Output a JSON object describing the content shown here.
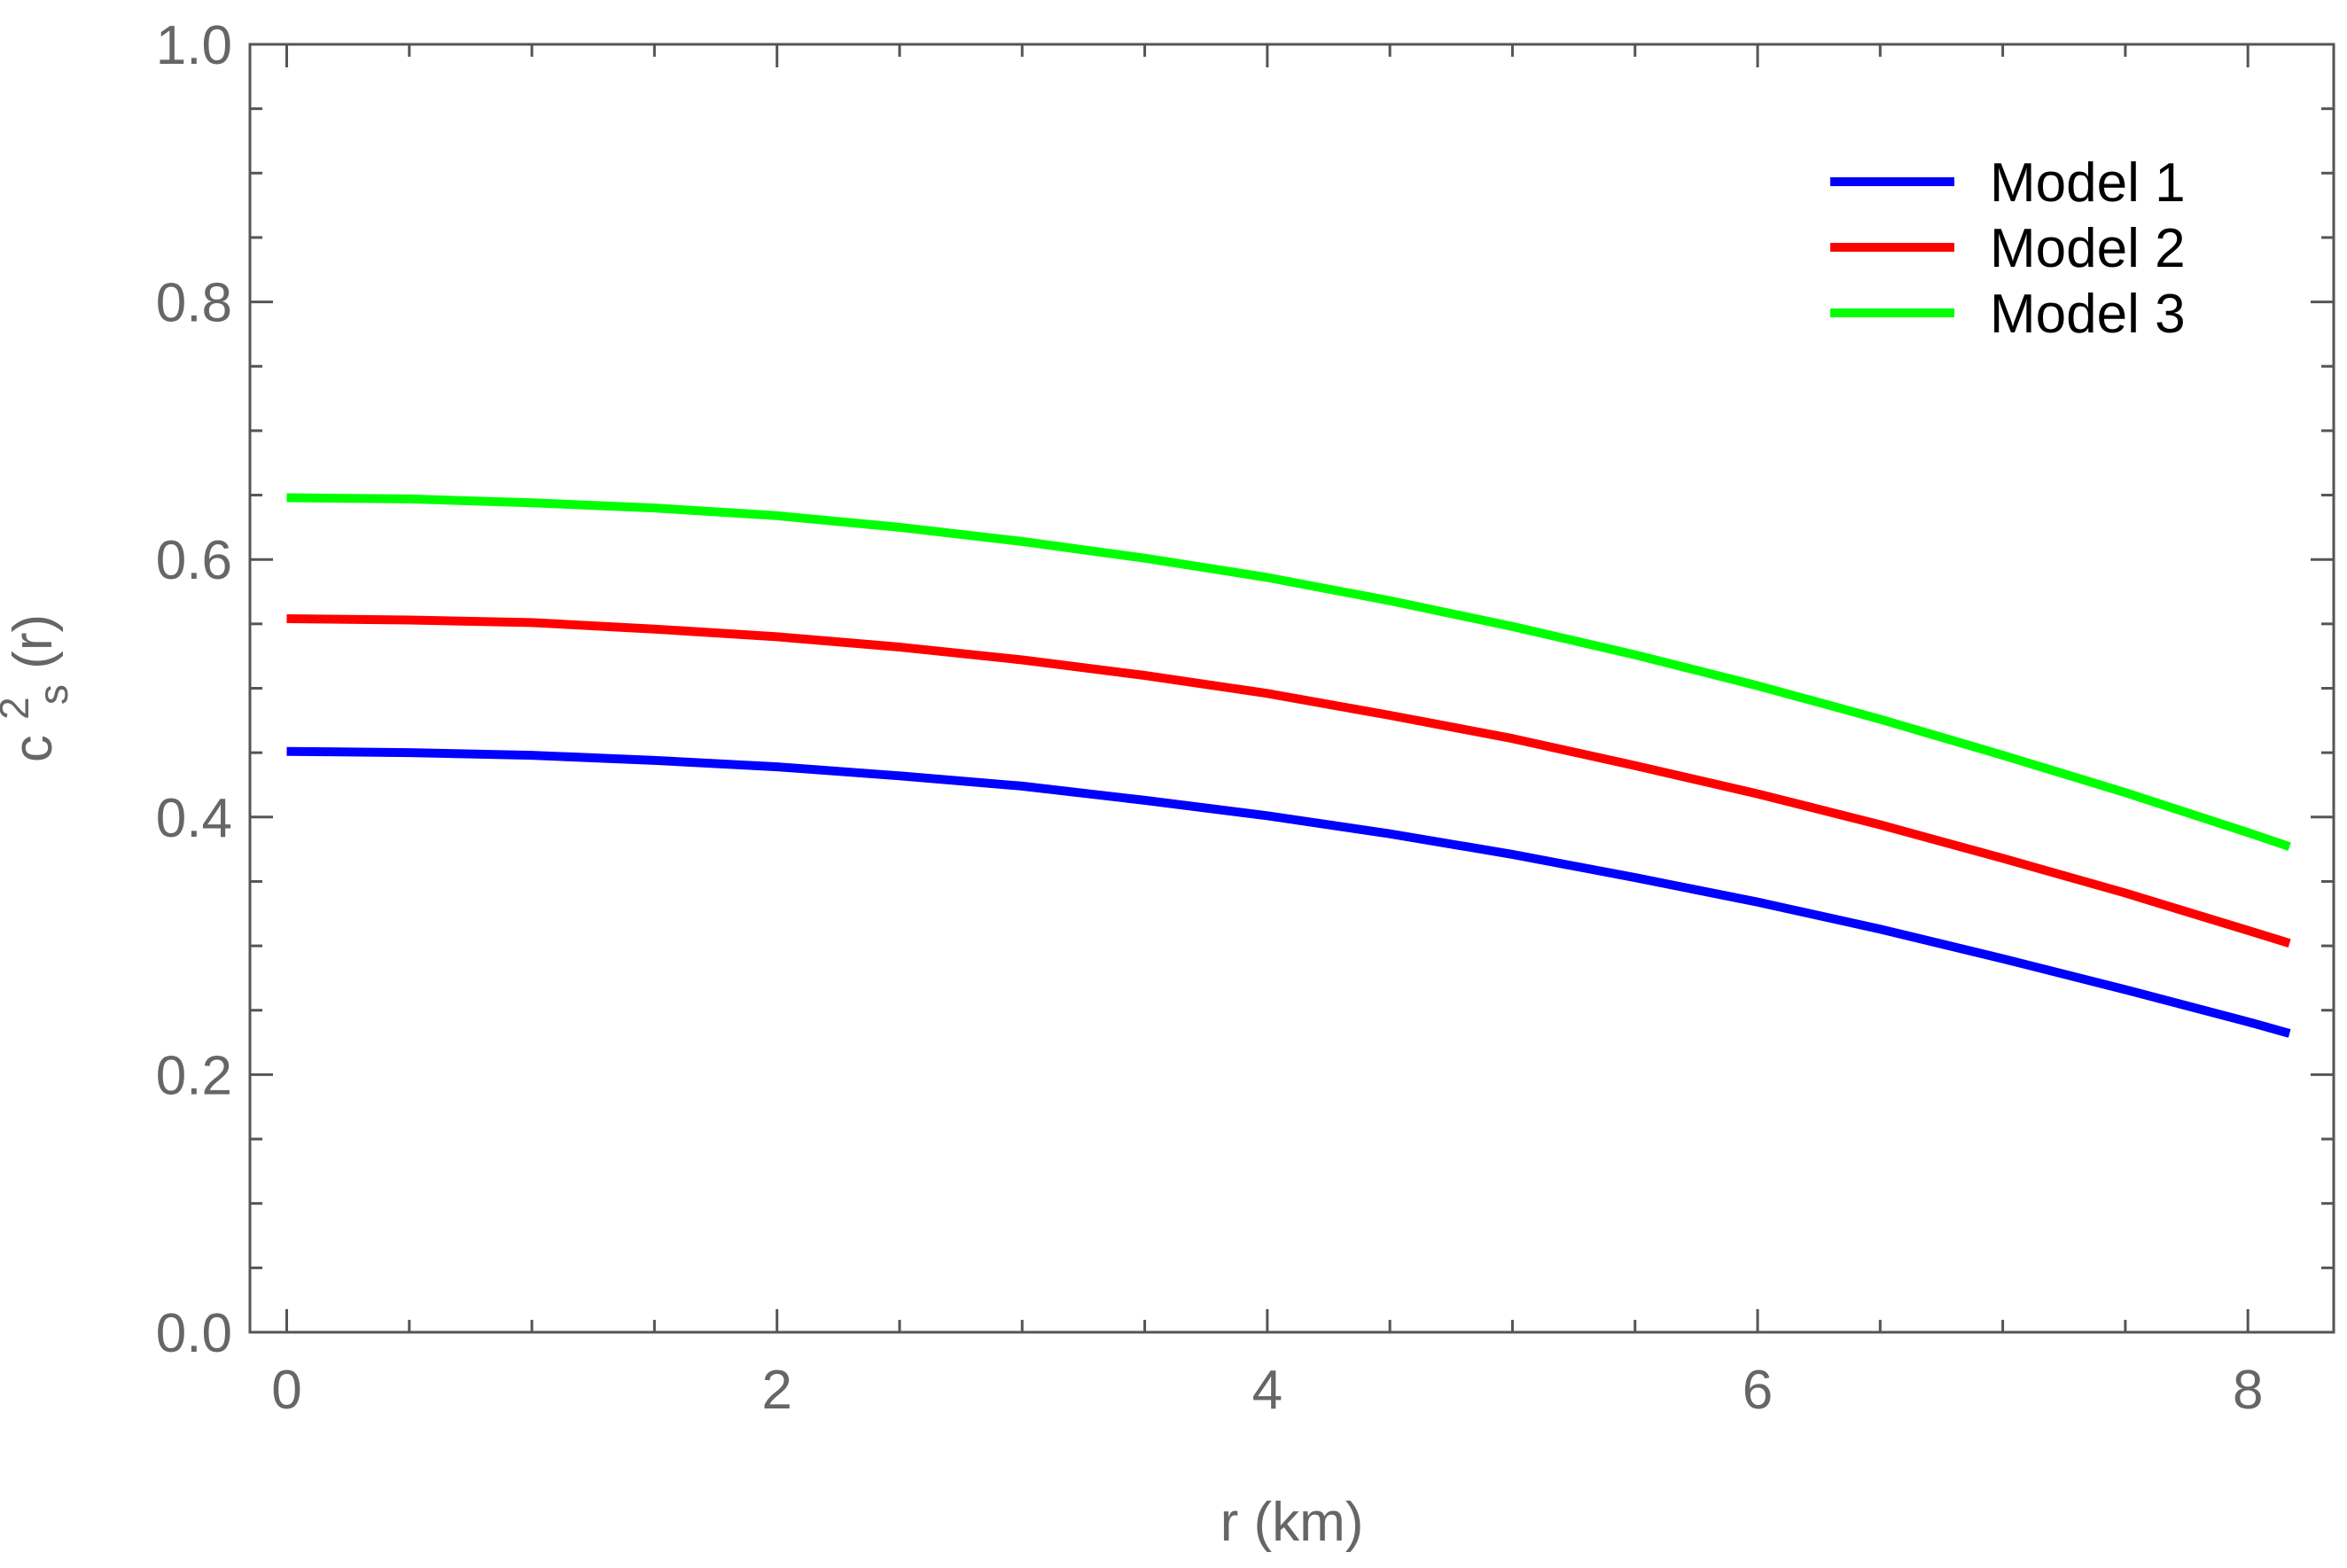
{
  "chart_data": {
    "type": "line",
    "title": "",
    "xlabel": "r (km)",
    "ylabel": {
      "base": "c",
      "superscript": "2",
      "subscript": "s",
      "suffix": "(r)"
    },
    "xlim": [
      -0.15,
      8.35
    ],
    "ylim": [
      0,
      1
    ],
    "xticks": [
      {
        "value": 0,
        "label": "0"
      },
      {
        "value": 2,
        "label": "2"
      },
      {
        "value": 4,
        "label": "4"
      },
      {
        "value": 6,
        "label": "6"
      },
      {
        "value": 8,
        "label": "8"
      }
    ],
    "yticks": [
      {
        "value": 0,
        "label": "0.0"
      },
      {
        "value": 0.2,
        "label": "0.2"
      },
      {
        "value": 0.4,
        "label": "0.4"
      },
      {
        "value": 0.6,
        "label": "0.6"
      },
      {
        "value": 0.8,
        "label": "0.8"
      },
      {
        "value": 1,
        "label": "1.0"
      }
    ],
    "x_minor_step": 0.5,
    "y_minor_step": 0.05,
    "grid": false,
    "legend_position": "top-right",
    "x": [
      0,
      0.5,
      1,
      1.5,
      2,
      2.5,
      3,
      3.5,
      4,
      4.5,
      5,
      5.5,
      6,
      6.5,
      7,
      7.5,
      8,
      8.17
    ],
    "series": [
      {
        "name": "Model 1",
        "color": "#0000ff",
        "values": [
          0.451,
          0.45,
          0.448,
          0.444,
          0.439,
          0.432,
          0.424,
          0.413,
          0.401,
          0.387,
          0.371,
          0.353,
          0.334,
          0.313,
          0.29,
          0.266,
          0.241,
          0.232
        ]
      },
      {
        "name": "Model 2",
        "color": "#ff0000",
        "values": [
          0.554,
          0.553,
          0.551,
          0.546,
          0.54,
          0.532,
          0.522,
          0.51,
          0.496,
          0.479,
          0.461,
          0.44,
          0.418,
          0.394,
          0.368,
          0.341,
          0.312,
          0.302
        ]
      },
      {
        "name": "Model 3",
        "color": "#00ff00",
        "values": [
          0.648,
          0.647,
          0.644,
          0.64,
          0.634,
          0.625,
          0.614,
          0.601,
          0.586,
          0.568,
          0.548,
          0.526,
          0.502,
          0.476,
          0.448,
          0.419,
          0.388,
          0.377
        ]
      }
    ]
  }
}
